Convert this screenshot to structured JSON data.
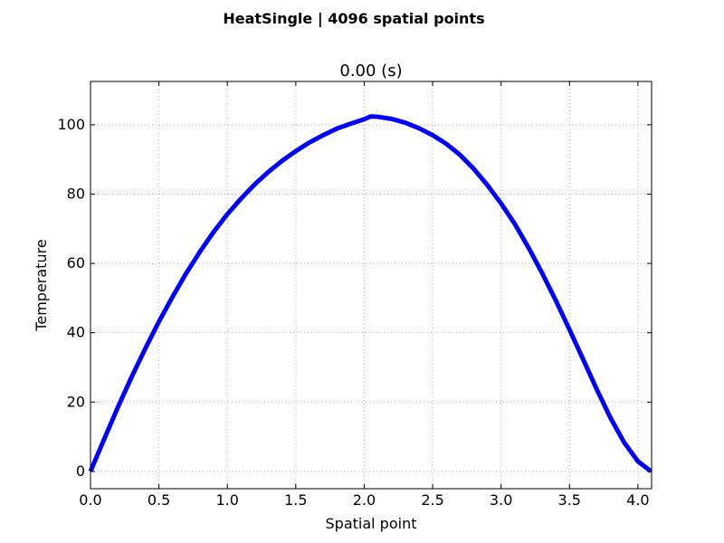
{
  "chart_data": {
    "type": "line",
    "suptitle": "HeatSingle | 4096 spatial points",
    "title": "0.00 (s)",
    "xlabel": "Spatial point",
    "ylabel": "Temperature",
    "xlim": [
      0.0,
      4.1
    ],
    "ylim": [
      -5,
      112.5
    ],
    "xticks": [
      0.0,
      0.5,
      1.0,
      1.5,
      2.0,
      2.5,
      3.0,
      3.5,
      4.0
    ],
    "xtick_labels": [
      "0.0",
      "0.5",
      "1.0",
      "1.5",
      "2.0",
      "2.5",
      "3.0",
      "3.5",
      "4.0"
    ],
    "yticks": [
      0,
      20,
      40,
      60,
      80,
      100
    ],
    "ytick_labels": [
      "0",
      "20",
      "40",
      "60",
      "80",
      "100"
    ],
    "grid": true,
    "series": [
      {
        "color": "#0000ff",
        "x": [
          0.0,
          0.1,
          0.2,
          0.3,
          0.4,
          0.5,
          0.6,
          0.7,
          0.8,
          0.9,
          1.0,
          1.1,
          1.2,
          1.3,
          1.4,
          1.5,
          1.6,
          1.7,
          1.8,
          1.9,
          2.0,
          2.048,
          2.1,
          2.2,
          2.3,
          2.4,
          2.5,
          2.6,
          2.7,
          2.8,
          2.9,
          3.0,
          3.1,
          3.2,
          3.3,
          3.4,
          3.5,
          3.6,
          3.7,
          3.8,
          3.9,
          4.0,
          4.096
        ],
        "y": [
          0.0,
          9.3,
          18.5,
          27.2,
          35.4,
          43.2,
          50.4,
          57.2,
          63.4,
          69.1,
          74.2,
          78.7,
          82.8,
          86.4,
          89.6,
          92.4,
          94.9,
          97.0,
          98.9,
          100.3,
          101.6,
          102.4,
          102.3,
          101.7,
          100.6,
          99.0,
          97.0,
          94.5,
          91.3,
          87.3,
          82.6,
          77.3,
          71.4,
          64.6,
          57.2,
          49.3,
          40.9,
          32.3,
          23.6,
          15.4,
          8.3,
          2.9,
          0.0
        ]
      }
    ]
  }
}
